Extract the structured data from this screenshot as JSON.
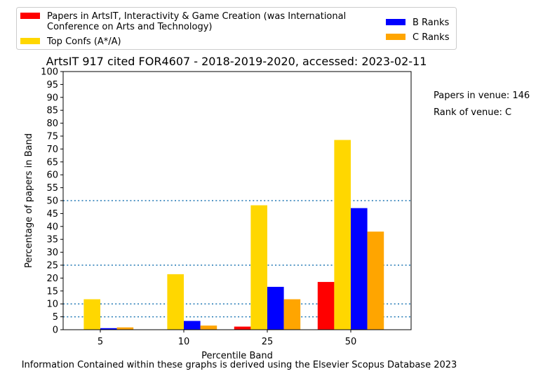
{
  "chart_data": {
    "type": "bar",
    "title": "ArtsIT 917 cited FOR4607 - 2018-2019-2020, accessed: 2023-02-11",
    "xlabel": "Percentile Band",
    "ylabel": "Percentage of papers in Band",
    "categories": [
      "5",
      "10",
      "25",
      "50"
    ],
    "ylim": [
      0,
      100
    ],
    "yticks": [
      0,
      5,
      10,
      15,
      20,
      25,
      30,
      35,
      40,
      45,
      50,
      55,
      60,
      65,
      70,
      75,
      80,
      85,
      90,
      95,
      100
    ],
    "reference_lines": [
      5,
      10,
      25,
      50
    ],
    "legend_position": "top",
    "series": [
      {
        "name": "Papers in ArtsIT, Interactivity & Game Creation (was International Conference on Arts and Technology)",
        "legend_lines": [
          "Papers in ArtsIT, Interactivity & Game Creation (was International",
          "Conference on Arts and Technology)"
        ],
        "color": "#ff0000",
        "values": [
          0,
          0,
          1.2,
          18.5
        ]
      },
      {
        "name": "Top Confs (A*/A)",
        "legend_lines": [
          "Top Confs (A*/A)"
        ],
        "color": "#ffd700",
        "values": [
          11.8,
          21.5,
          48.2,
          73.5
        ]
      },
      {
        "name": "B Ranks",
        "legend_lines": [
          "B Ranks"
        ],
        "color": "#0000ff",
        "values": [
          0.6,
          3.4,
          16.6,
          47.1
        ]
      },
      {
        "name": "C Ranks",
        "legend_lines": [
          "C Ranks"
        ],
        "color": "#ffa500",
        "values": [
          0.9,
          1.6,
          11.8,
          38.0
        ]
      }
    ]
  },
  "side_notes": {
    "papers_in_venue": "Papers in venue: 146",
    "rank_of_venue": "Rank of venue: C"
  },
  "footer": "Information Contained within these graphs is derived using the Elsevier Scopus Database 2023"
}
